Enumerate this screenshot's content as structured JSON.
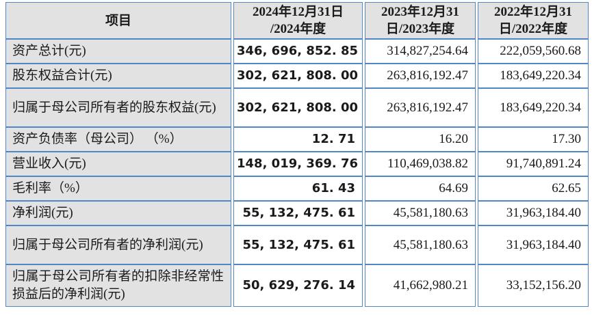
{
  "colors": {
    "border_blue": "#4e86c6",
    "header_and_item_bg": "#e2e2e2",
    "value_cell_bg": "#ffffff",
    "text": "#1a1a1a"
  },
  "table": {
    "columns": [
      {
        "label": "项目"
      },
      {
        "label": "2024年12月31日\n/2024年度"
      },
      {
        "label": "2023年12月31\n日/2023年度"
      },
      {
        "label": "2022年12月31\n日/2022年度"
      }
    ],
    "rows": [
      {
        "item": "资产总计(元)",
        "y2024": "346, 696, 852. 85",
        "y2023": "314,827,254.64",
        "y2022": "222,059,560.68"
      },
      {
        "item": "股东权益合计(元)",
        "y2024": "302, 621, 808. 00",
        "y2023": "263,816,192.47",
        "y2022": "183,649,220.34"
      },
      {
        "item": "归属于母公司所有者的股东权益(元)",
        "y2024": "302, 621, 808. 00",
        "y2023": "263,816,192.47",
        "y2022": "183,649,220.34"
      },
      {
        "item": "资产负债率（母公司） （%）",
        "y2024": "12. 71",
        "y2023": "16.20",
        "y2022": "17.30"
      },
      {
        "item": "营业收入(元)",
        "y2024": "148, 019, 369. 76",
        "y2023": "110,469,038.82",
        "y2022": "91,740,891.24"
      },
      {
        "item": "毛利率（%）",
        "y2024": "61. 43",
        "y2023": "64.69",
        "y2022": "62.65"
      },
      {
        "item": "净利润(元)",
        "y2024": "55, 132, 475. 61",
        "y2023": "45,581,180.63",
        "y2022": "31,963,184.40"
      },
      {
        "item": "归属于母公司所有者的净利润(元)",
        "y2024": "55, 132, 475. 61",
        "y2023": "45,581,180.63",
        "y2022": "31,963,184.40"
      },
      {
        "item": "归属于母公司所有者的扣除非经常性损益后的净利润(元)",
        "y2024": "50, 629, 276. 14",
        "y2023": "41,662,980.21",
        "y2022": "33,152,156.20"
      }
    ]
  }
}
